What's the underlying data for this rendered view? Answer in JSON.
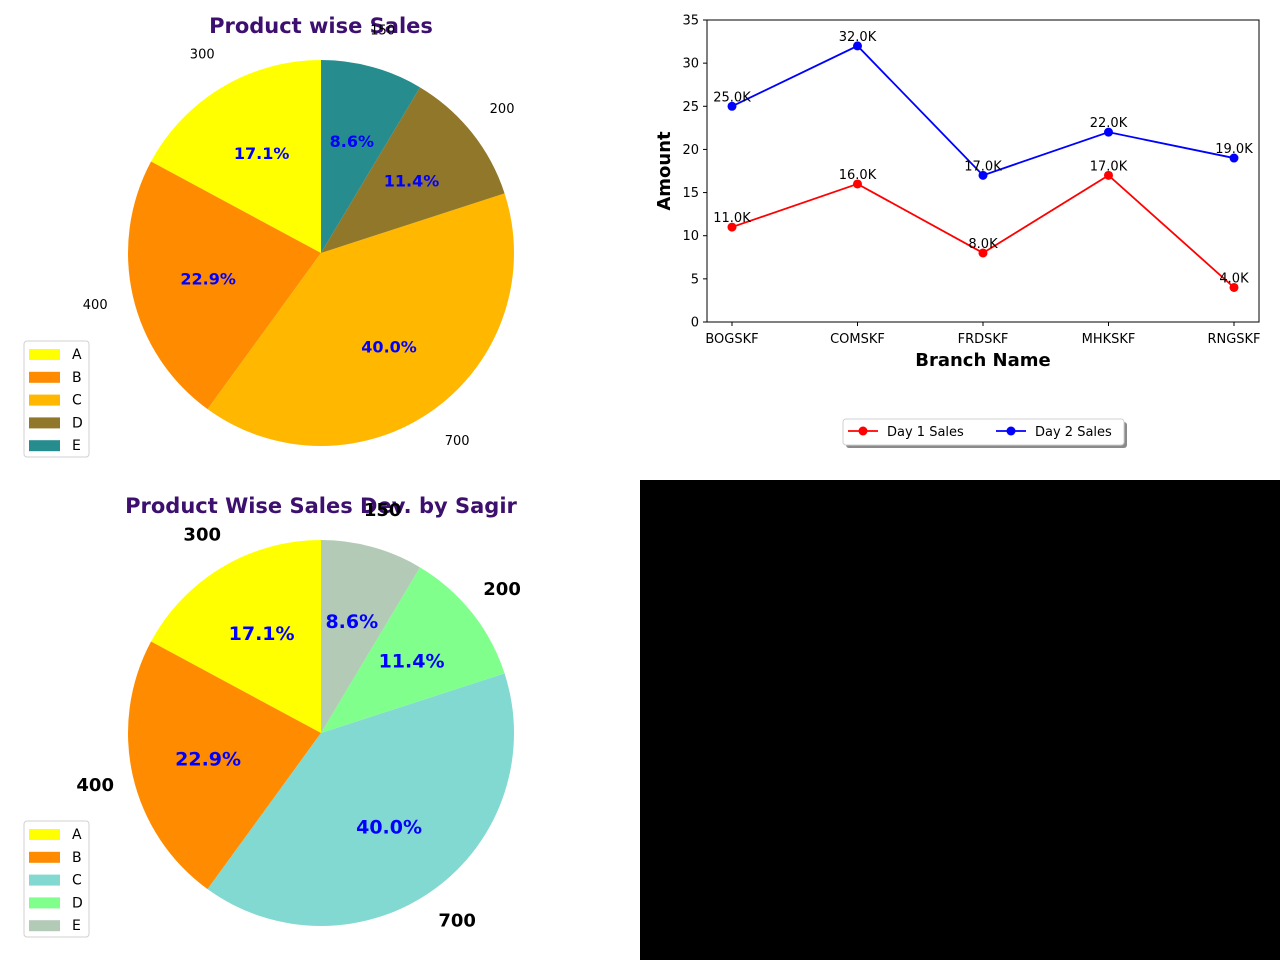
{
  "chart_data": [
    {
      "type": "pie",
      "title": "Product wise Sales",
      "categories": [
        "A",
        "B",
        "C",
        "D",
        "E"
      ],
      "values": [
        300,
        400,
        700,
        200,
        150
      ],
      "value_labels": [
        "300",
        "400",
        "700",
        "200",
        "150"
      ],
      "percent_labels": [
        "17.1%",
        "22.9%",
        "40.0%",
        "11.4%",
        "8.6%"
      ],
      "colors": [
        "#ffff00",
        "#ff8c00",
        "#ffb700",
        "#917729",
        "#268c8e"
      ],
      "legend": [
        "A",
        "B",
        "C",
        "D",
        "E"
      ],
      "legend_position": "lower-left",
      "title_color": "#3d0f6e",
      "percent_color": "#0000ff"
    },
    {
      "type": "line",
      "title": "",
      "categories": [
        "BOGSKF",
        "COMSKF",
        "FRDSKF",
        "MHKSKF",
        "RNGSKF"
      ],
      "series": [
        {
          "name": "Day 1 Sales",
          "values": [
            11,
            16,
            8,
            17,
            4
          ],
          "labels": [
            "11.0K",
            "16.0K",
            "8.0K",
            "17.0K",
            "4.0K"
          ],
          "color": "#ff0000"
        },
        {
          "name": "Day 2 Sales",
          "values": [
            25,
            32,
            17,
            22,
            19
          ],
          "labels": [
            "25.0K",
            "32.0K",
            "17.0K",
            "22.0K",
            "19.0K"
          ],
          "color": "#0000ff"
        }
      ],
      "xlabel": "Branch Name",
      "ylabel": "Amount",
      "ylim": [
        0,
        35
      ],
      "yticks": [
        "0",
        "5",
        "10",
        "15",
        "20",
        "25",
        "30",
        "35"
      ],
      "grid": false,
      "legend_position": "bottom-center"
    },
    {
      "type": "pie",
      "title": "Product Wise Sales Dev. by Sagir",
      "categories": [
        "A",
        "B",
        "C",
        "D",
        "E"
      ],
      "values": [
        300,
        400,
        700,
        200,
        150
      ],
      "value_labels": [
        "300",
        "400",
        "700",
        "200",
        "150"
      ],
      "percent_labels": [
        "17.1%",
        "22.9%",
        "40.0%",
        "11.4%",
        "8.6%"
      ],
      "colors": [
        "#ffff00",
        "#ff8c00",
        "#82d9d2",
        "#80ff8c",
        "#b3cab7"
      ],
      "legend": [
        "A",
        "B",
        "C",
        "D",
        "E"
      ],
      "legend_position": "lower-left",
      "title_color": "#3d0f6e",
      "percent_color": "#0000ff"
    }
  ]
}
